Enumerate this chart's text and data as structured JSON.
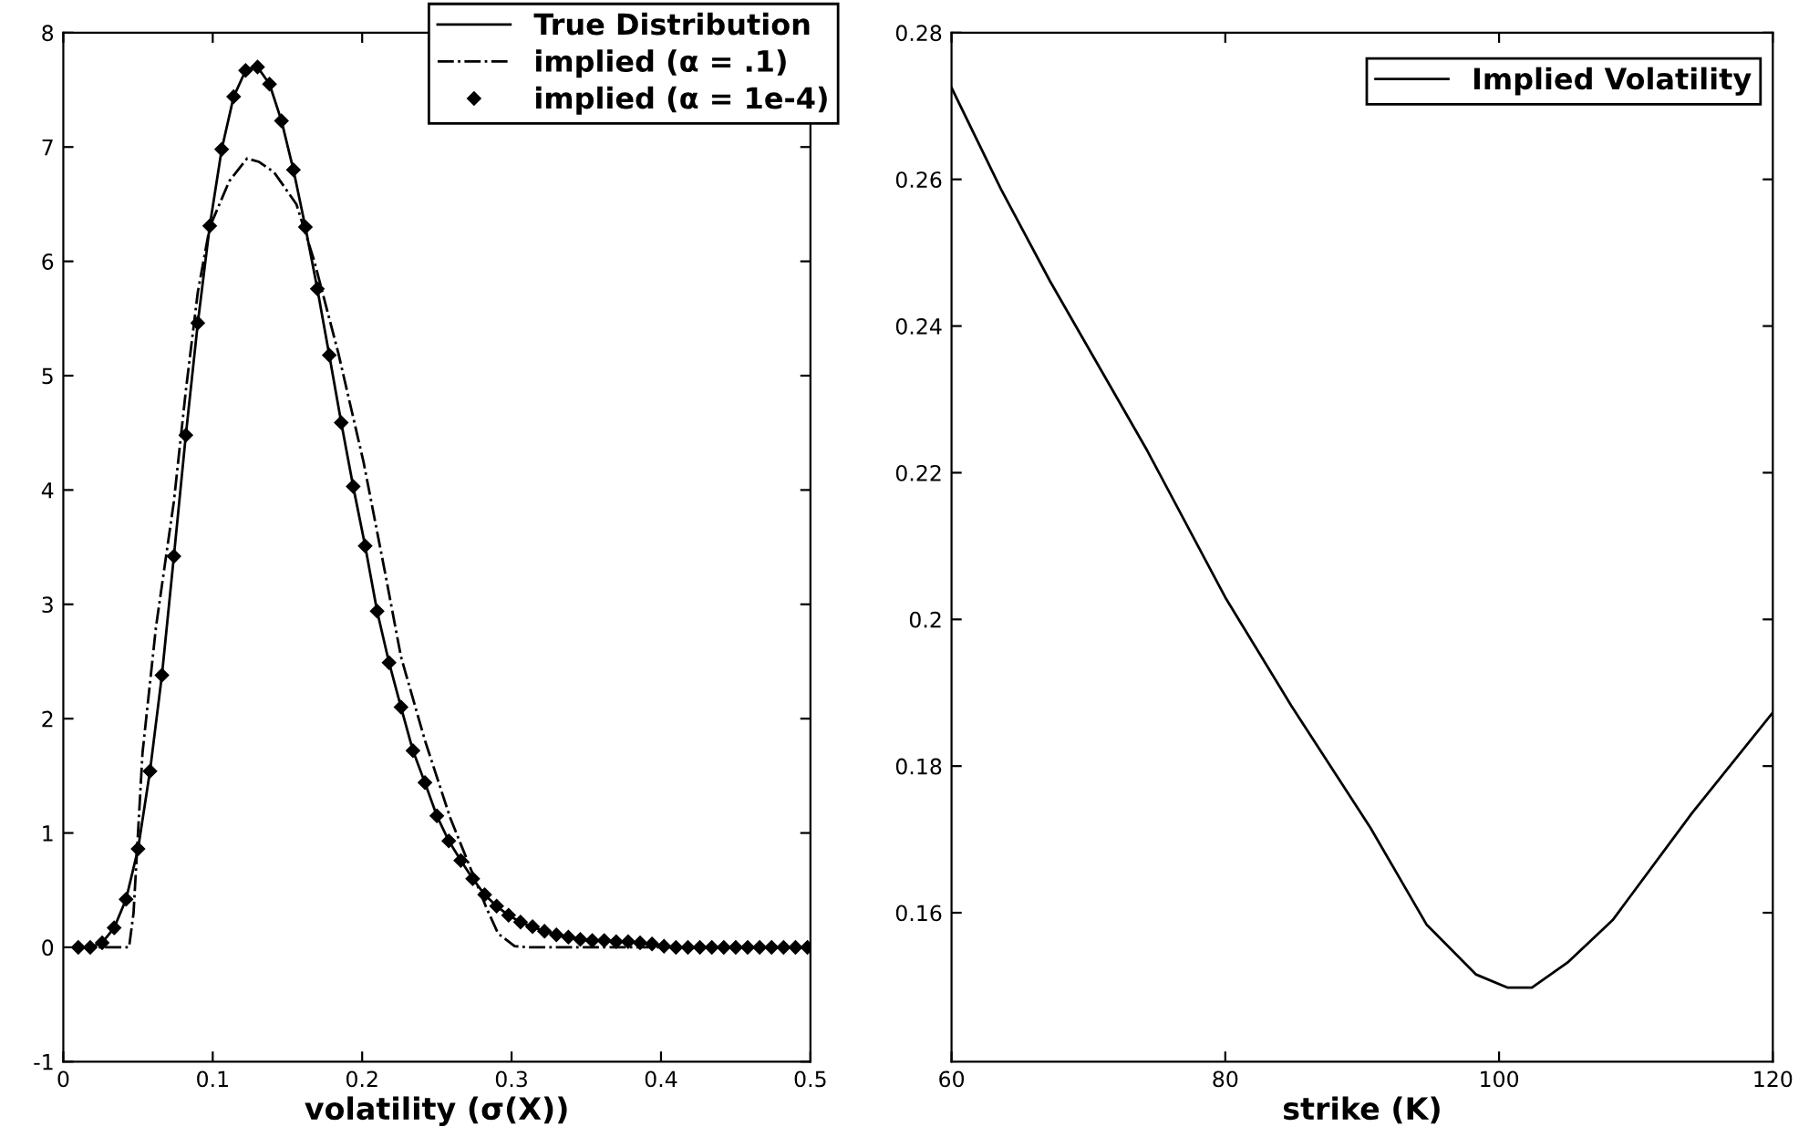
{
  "chart_data": [
    {
      "type": "line",
      "xlabel": "volatility (σ(X))",
      "xlim": [
        0,
        0.5
      ],
      "ylim": [
        -1,
        8
      ],
      "xticks": [
        0,
        0.1,
        0.2,
        0.3,
        0.4,
        0.5
      ],
      "yticks": [
        -1,
        0,
        1,
        2,
        3,
        4,
        5,
        6,
        7,
        8
      ],
      "legend": "top right",
      "grid": false,
      "series": [
        {
          "name": "True Distribution",
          "line_style": "solid",
          "color": "#000000",
          "x": [
            0.01,
            0.018,
            0.026,
            0.034,
            0.042,
            0.05,
            0.058,
            0.066,
            0.074,
            0.082,
            0.09,
            0.098,
            0.106,
            0.114,
            0.122,
            0.13,
            0.138,
            0.146,
            0.154,
            0.162,
            0.17,
            0.178,
            0.186,
            0.194,
            0.202,
            0.21,
            0.218,
            0.226,
            0.234,
            0.242,
            0.25,
            0.258,
            0.266,
            0.274,
            0.282,
            0.29,
            0.298,
            0.306,
            0.314,
            0.322,
            0.33,
            0.338,
            0.346,
            0.354,
            0.362,
            0.37,
            0.378,
            0.386,
            0.394,
            0.402,
            0.41,
            0.5
          ],
          "values": [
            0,
            0,
            0.04,
            0.17,
            0.42,
            0.86,
            1.54,
            2.38,
            3.42,
            4.48,
            5.46,
            6.31,
            6.98,
            7.44,
            7.67,
            7.7,
            7.55,
            7.23,
            6.8,
            6.3,
            5.76,
            5.18,
            4.59,
            4.03,
            3.51,
            2.94,
            2.49,
            2.1,
            1.72,
            1.44,
            1.15,
            0.93,
            0.76,
            0.6,
            0.46,
            0.36,
            0.28,
            0.22,
            0.18,
            0.14,
            0.11,
            0.09,
            0.07,
            0.06,
            0.06,
            0.05,
            0.05,
            0.04,
            0.03,
            0.01,
            0,
            0
          ]
        },
        {
          "name": "implied (α = .1)",
          "line_style": "dashdot",
          "color": "#000000",
          "x": [
            0.01,
            0.044,
            0.047,
            0.053,
            0.062,
            0.074,
            0.082,
            0.09,
            0.098,
            0.111,
            0.123,
            0.131,
            0.141,
            0.156,
            0.168,
            0.184,
            0.201,
            0.215,
            0.226,
            0.242,
            0.259,
            0.271,
            0.283,
            0.291,
            0.302,
            0.312,
            0.5
          ],
          "values": [
            0,
            0,
            0.3,
            1.7,
            2.8,
            3.9,
            4.87,
            5.73,
            6.3,
            6.7,
            6.9,
            6.87,
            6.78,
            6.5,
            6.0,
            5.2,
            4.24,
            3.3,
            2.54,
            1.81,
            1.13,
            0.74,
            0.35,
            0.12,
            0.01,
            0,
            0
          ]
        },
        {
          "name": "implied (α = 1e-4)",
          "type": "scatter",
          "marker": "diamond",
          "color": "#000000",
          "x": [
            0.01,
            0.018,
            0.026,
            0.034,
            0.042,
            0.05,
            0.058,
            0.066,
            0.074,
            0.082,
            0.09,
            0.098,
            0.106,
            0.114,
            0.122,
            0.13,
            0.138,
            0.146,
            0.154,
            0.162,
            0.17,
            0.178,
            0.186,
            0.194,
            0.202,
            0.21,
            0.218,
            0.226,
            0.234,
            0.242,
            0.25,
            0.258,
            0.266,
            0.274,
            0.282,
            0.29,
            0.298,
            0.306,
            0.314,
            0.322,
            0.33,
            0.338,
            0.346,
            0.354,
            0.362,
            0.37,
            0.378,
            0.386,
            0.394,
            0.402,
            0.41,
            0.418,
            0.426,
            0.434,
            0.442,
            0.45,
            0.458,
            0.466,
            0.474,
            0.482,
            0.49,
            0.498
          ],
          "values": [
            0,
            0,
            0.04,
            0.17,
            0.42,
            0.86,
            1.54,
            2.38,
            3.42,
            4.48,
            5.46,
            6.31,
            6.98,
            7.44,
            7.67,
            7.7,
            7.55,
            7.23,
            6.8,
            6.3,
            5.76,
            5.18,
            4.59,
            4.03,
            3.51,
            2.94,
            2.49,
            2.1,
            1.72,
            1.44,
            1.15,
            0.93,
            0.76,
            0.6,
            0.46,
            0.36,
            0.28,
            0.22,
            0.18,
            0.14,
            0.11,
            0.09,
            0.07,
            0.06,
            0.06,
            0.05,
            0.05,
            0.04,
            0.03,
            0.01,
            0,
            0,
            0,
            0,
            0,
            0,
            0,
            0,
            0,
            0,
            0,
            0
          ]
        }
      ]
    },
    {
      "type": "line",
      "xlabel": "strike (K)",
      "xlim": [
        60,
        120
      ],
      "ylim": [
        0.1397,
        0.28
      ],
      "xticks": [
        60,
        80,
        100,
        120
      ],
      "yticks": [
        0.16,
        0.18,
        0.2,
        0.22,
        0.24,
        0.26,
        0.28
      ],
      "legend": "top right",
      "grid": false,
      "series": [
        {
          "name": "Implied Volatility",
          "line_style": "solid",
          "color": "#000000",
          "x": [
            60,
            63.6,
            67.2,
            74.3,
            80,
            84.8,
            90.6,
            94.7,
            98.3,
            100.6,
            102.4,
            105,
            108.3,
            114.1,
            120
          ],
          "values": [
            0.2725,
            0.2587,
            0.2461,
            0.223,
            0.203,
            0.1883,
            0.1716,
            0.1584,
            0.1516,
            0.1498,
            0.1498,
            0.1532,
            0.159,
            0.1736,
            0.1873
          ]
        }
      ]
    }
  ]
}
